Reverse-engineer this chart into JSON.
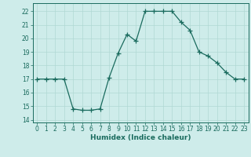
{
  "x": [
    0,
    1,
    2,
    3,
    4,
    5,
    6,
    7,
    8,
    9,
    10,
    11,
    12,
    13,
    14,
    15,
    16,
    17,
    18,
    19,
    20,
    21,
    22,
    23
  ],
  "y": [
    17,
    17,
    17,
    17,
    14.8,
    14.7,
    14.7,
    14.8,
    17.1,
    18.9,
    20.3,
    19.8,
    22.0,
    22.0,
    22.0,
    22.0,
    21.2,
    20.6,
    19.0,
    18.7,
    18.2,
    17.5,
    17.0,
    17.0
  ],
  "line_color": "#1a6b5e",
  "marker": "+",
  "marker_size": 4,
  "bg_color": "#ceecea",
  "grid_color": "#b0d8d4",
  "xlabel": "Humidex (Indice chaleur)",
  "ylabel": "",
  "xlim": [
    -0.5,
    23.5
  ],
  "ylim": [
    13.8,
    22.6
  ],
  "yticks": [
    14,
    15,
    16,
    17,
    18,
    19,
    20,
    21,
    22
  ],
  "xticks": [
    0,
    1,
    2,
    3,
    4,
    5,
    6,
    7,
    8,
    9,
    10,
    11,
    12,
    13,
    14,
    15,
    16,
    17,
    18,
    19,
    20,
    21,
    22,
    23
  ],
  "tick_color": "#1a6b5e",
  "axis_color": "#1a6b5e",
  "label_fontsize": 6.5,
  "tick_fontsize": 5.5,
  "linewidth": 0.9,
  "markeredgewidth": 0.9
}
